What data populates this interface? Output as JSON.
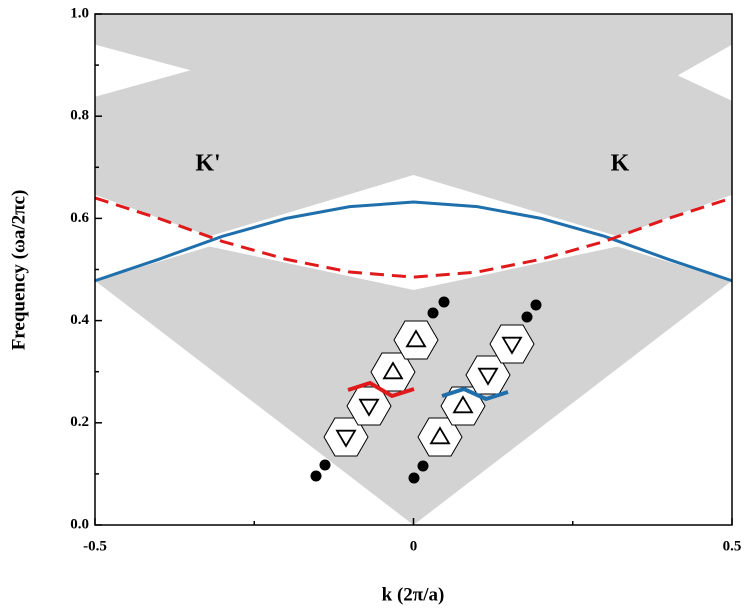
{
  "chart_data": {
    "type": "line",
    "xlabel": "k (2π/a)",
    "ylabel": "Frequency (ωa/2πc)",
    "annotations": [
      "K'",
      "K"
    ],
    "xlim": [
      -0.5,
      0.5
    ],
    "ylim": [
      0,
      1
    ],
    "xticks": [
      -0.5,
      0,
      0.5
    ],
    "yticks": [
      {
        "value": 0,
        "label": "0.0"
      },
      0.2,
      0.4,
      0.6,
      0.8,
      {
        "value": 1,
        "label": "1.0"
      }
    ],
    "xminorticks": [
      -0.25,
      0.25
    ],
    "yminorticks": [
      0.1,
      0.3,
      0.5,
      0.7,
      0.9
    ],
    "x": [
      -0.5,
      -0.4,
      -0.3,
      -0.2,
      -0.1,
      0,
      0.1,
      0.2,
      0.3,
      0.4,
      0.5
    ],
    "series": [
      {
        "color": "#1f6fad",
        "style": "solid",
        "values": [
          0.478,
          0.52,
          0.565,
          0.6,
          0.623,
          0.632,
          0.623,
          0.6,
          0.565,
          0.52,
          0.478
        ]
      },
      {
        "color": "#e0191b",
        "style": "dashed",
        "values": [
          0.64,
          0.6,
          0.555,
          0.52,
          0.495,
          0.485,
          0.495,
          0.52,
          0.555,
          0.6,
          0.64
        ]
      }
    ],
    "regions": [
      {
        "color": "#d3d3d3",
        "x": [
          -0.5,
          -0.32,
          0,
          0.32,
          0.5,
          0
        ],
        "values": [
          0.478,
          0.545,
          0.46,
          0.545,
          0.478,
          0
        ]
      },
      {
        "color": "#d3d3d3",
        "x": [
          -0.5,
          -0.32,
          0,
          0.32,
          0.5,
          0.5,
          0.415,
          0.5,
          0.5,
          -0.5,
          -0.5,
          -0.35,
          -0.5
        ],
        "values": [
          0.646,
          0.565,
          0.685,
          0.565,
          0.646,
          0.83,
          0.88,
          0.94,
          1,
          1,
          0.94,
          0.89,
          0.838
        ]
      }
    ]
  }
}
